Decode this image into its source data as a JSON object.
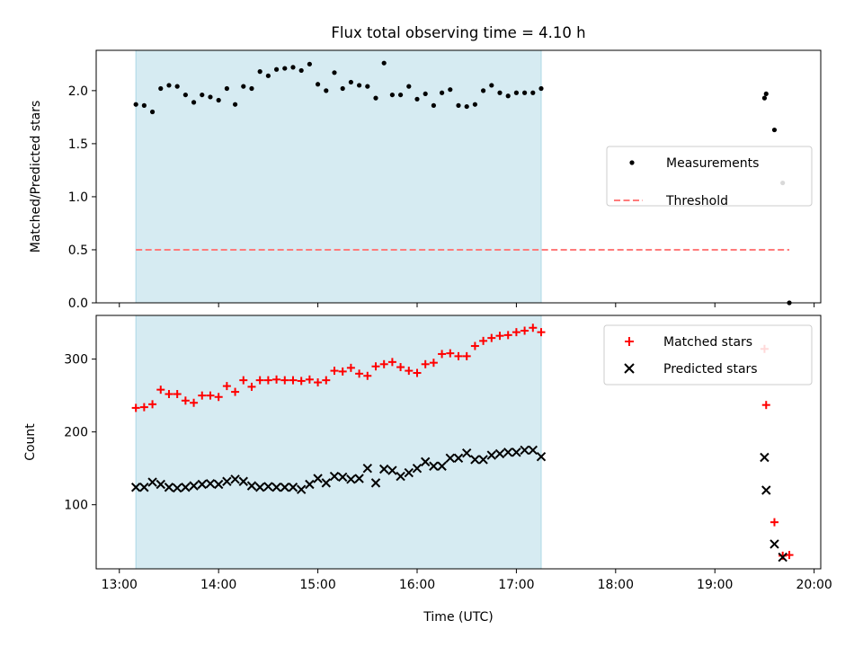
{
  "title": "Flux total observing time = 4.10 h",
  "colors": {
    "span": "#add8e6",
    "threshold": "#ff7b7b",
    "measurements": "#000000",
    "matched": "#ff0000",
    "predicted": "#000000"
  },
  "chart_data": [
    {
      "type": "scatter",
      "ylabel": "Matched/Predicted stars",
      "xlabel": "",
      "ylim": [
        0,
        2.38
      ],
      "yticks": [
        "0.0",
        "0.5",
        "1.0",
        "1.5",
        "2.0"
      ],
      "xlim": [
        "12:46",
        "20:04"
      ],
      "shaded_span": [
        "13:10",
        "17:15"
      ],
      "legend": {
        "placement": "center-right",
        "entries": [
          "Measurements",
          "Threshold"
        ]
      },
      "threshold": {
        "name": "Threshold",
        "value": 0.5,
        "x": [
          "13:10",
          "19:45"
        ]
      },
      "series": [
        {
          "name": "Measurements",
          "marker": "dot",
          "x": [
            "13:10",
            "13:15",
            "13:20",
            "13:25",
            "13:30",
            "13:35",
            "13:40",
            "13:45",
            "13:50",
            "13:55",
            "14:00",
            "14:05",
            "14:10",
            "14:15",
            "14:20",
            "14:25",
            "14:30",
            "14:35",
            "14:40",
            "14:45",
            "14:50",
            "14:55",
            "15:00",
            "15:05",
            "15:10",
            "15:15",
            "15:20",
            "15:25",
            "15:30",
            "15:35",
            "15:40",
            "15:45",
            "15:50",
            "15:55",
            "16:00",
            "16:05",
            "16:10",
            "16:15",
            "16:20",
            "16:25",
            "16:30",
            "16:35",
            "16:40",
            "16:45",
            "16:50",
            "16:55",
            "17:00",
            "17:05",
            "17:10",
            "17:15",
            "19:30",
            "19:31",
            "19:36",
            "19:41",
            "19:45"
          ],
          "y": [
            1.87,
            1.86,
            1.8,
            2.02,
            2.05,
            2.04,
            1.96,
            1.89,
            1.96,
            1.94,
            1.91,
            2.02,
            1.87,
            2.04,
            2.02,
            2.18,
            2.14,
            2.2,
            2.21,
            2.22,
            2.19,
            2.25,
            2.06,
            2.0,
            2.17,
            2.02,
            2.08,
            2.05,
            2.04,
            1.93,
            2.26,
            1.96,
            1.96,
            2.04,
            1.92,
            1.97,
            1.86,
            1.98,
            2.01,
            1.86,
            1.85,
            1.87,
            2.0,
            2.05,
            1.98,
            1.95,
            1.98,
            1.98,
            1.98,
            2.02,
            1.93,
            1.97,
            1.63,
            1.13,
            0.0
          ]
        }
      ]
    },
    {
      "type": "scatter",
      "ylabel": "Count",
      "xlabel": "Time (UTC)",
      "ylim": [
        12,
        360
      ],
      "yticks": [
        "100",
        "200",
        "300"
      ],
      "xlim": [
        "12:46",
        "20:04"
      ],
      "xticks": [
        "13:00",
        "14:00",
        "15:00",
        "16:00",
        "17:00",
        "18:00",
        "19:00",
        "20:00"
      ],
      "shaded_span": [
        "13:10",
        "17:15"
      ],
      "legend": {
        "placement": "top-right",
        "entries": [
          "Matched stars",
          "Predicted stars"
        ]
      },
      "series": [
        {
          "name": "Matched stars",
          "marker": "plus",
          "x": [
            "13:10",
            "13:15",
            "13:20",
            "13:25",
            "13:30",
            "13:35",
            "13:40",
            "13:45",
            "13:50",
            "13:55",
            "14:00",
            "14:05",
            "14:10",
            "14:15",
            "14:20",
            "14:25",
            "14:30",
            "14:35",
            "14:40",
            "14:45",
            "14:50",
            "14:55",
            "15:00",
            "15:05",
            "15:10",
            "15:15",
            "15:20",
            "15:25",
            "15:30",
            "15:35",
            "15:40",
            "15:45",
            "15:50",
            "15:55",
            "16:00",
            "16:05",
            "16:10",
            "16:15",
            "16:20",
            "16:25",
            "16:30",
            "16:35",
            "16:40",
            "16:45",
            "16:50",
            "16:55",
            "17:00",
            "17:05",
            "17:10",
            "17:15",
            "19:30",
            "19:31",
            "19:36",
            "19:41",
            "19:45"
          ],
          "y": [
            233,
            234,
            238,
            258,
            252,
            252,
            243,
            240,
            250,
            250,
            248,
            263,
            255,
            271,
            262,
            271,
            271,
            272,
            271,
            271,
            270,
            272,
            268,
            271,
            284,
            283,
            288,
            280,
            277,
            290,
            293,
            296,
            289,
            284,
            281,
            293,
            295,
            307,
            308,
            304,
            304,
            318,
            325,
            329,
            332,
            333,
            337,
            339,
            343,
            337,
            314,
            237,
            76,
            30,
            31
          ]
        },
        {
          "name": "Predicted stars",
          "marker": "x",
          "x": [
            "13:10",
            "13:15",
            "13:20",
            "13:25",
            "13:30",
            "13:35",
            "13:40",
            "13:45",
            "13:50",
            "13:55",
            "14:00",
            "14:05",
            "14:10",
            "14:15",
            "14:20",
            "14:25",
            "14:30",
            "14:35",
            "14:40",
            "14:45",
            "14:50",
            "14:55",
            "15:00",
            "15:05",
            "15:10",
            "15:15",
            "15:20",
            "15:25",
            "15:30",
            "15:35",
            "15:40",
            "15:45",
            "15:50",
            "15:55",
            "16:00",
            "16:05",
            "16:10",
            "16:15",
            "16:20",
            "16:25",
            "16:30",
            "16:35",
            "16:40",
            "16:45",
            "16:50",
            "16:55",
            "17:00",
            "17:05",
            "17:10",
            "17:15",
            "19:30",
            "19:31",
            "19:36",
            "19:41"
          ],
          "y": [
            124,
            124,
            131,
            128,
            124,
            123,
            124,
            126,
            128,
            129,
            128,
            132,
            135,
            132,
            126,
            124,
            125,
            124,
            124,
            124,
            121,
            128,
            136,
            130,
            139,
            138,
            135,
            136,
            150,
            130,
            149,
            147,
            139,
            144,
            150,
            159,
            153,
            153,
            164,
            164,
            171,
            162,
            162,
            168,
            170,
            172,
            172,
            175,
            175,
            166,
            165,
            120,
            46,
            28
          ]
        }
      ]
    }
  ]
}
